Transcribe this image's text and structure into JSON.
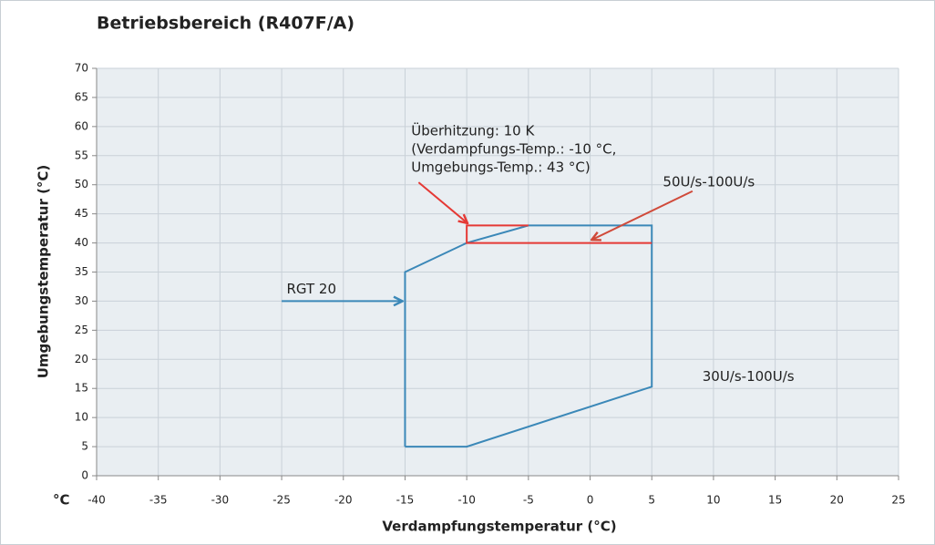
{
  "chart_data": {
    "type": "line",
    "title": "Betriebsbereich (R407F/A)",
    "x_label": "Verdampfungstemperatur (°C)",
    "y_label": "Umgebungstemperatur (°C)",
    "x_unit_label": "°C",
    "xlim": [
      -40,
      25
    ],
    "ylim": [
      0,
      70
    ],
    "xticks": [
      -40,
      -35,
      -30,
      -25,
      -20,
      -15,
      -10,
      -5,
      0,
      5,
      10,
      15,
      20,
      25
    ],
    "yticks": [
      0,
      5,
      10,
      15,
      20,
      25,
      30,
      35,
      40,
      45,
      50,
      55,
      60,
      65,
      70
    ],
    "grid": true,
    "series": [
      {
        "color": "#3b88b8",
        "x": [
          -15,
          -10,
          5,
          5,
          -5,
          -10,
          -15,
          -15
        ],
        "values": [
          5,
          5,
          15.3,
          43,
          43,
          40,
          35,
          5
        ]
      },
      {
        "color": "#e53935",
        "x": [
          5,
          -10,
          -10,
          -5
        ],
        "values": [
          40,
          40,
          43,
          43
        ]
      }
    ],
    "annotations": [
      {
        "lines": [
          "Überhitzung: 10 K",
          "(Verdampfungs-Temp.: -10 °C,",
          "Umgebungs-Temp.: 43 °C)"
        ],
        "color": "#e53935",
        "x": -14.5,
        "y": 59.2,
        "arrow": {
          "x1": -13.9,
          "y1": 50.4,
          "x2": -10,
          "y2": 43.5
        },
        "arrow_color": "#e53935"
      },
      {
        "lines": [
          "50U/s-100U/s"
        ],
        "color": "#222222",
        "x": 5.9,
        "y": 50.4,
        "arrow": {
          "x1": 8.3,
          "y1": 48.9,
          "x2": 0.2,
          "y2": 40.6
        },
        "arrow_color": "#d04a3a"
      },
      {
        "lines": [
          "RGT 20"
        ],
        "color": "#3b88b8",
        "x": -24.6,
        "y": 32,
        "arrow": {
          "x1": -25,
          "y1": 30,
          "x2": -15.3,
          "y2": 30
        },
        "arrow_color": "#3b88b8"
      },
      {
        "lines": [
          "30U/s-100U/s"
        ],
        "color": "#222222",
        "x": 9.1,
        "y": 17
      }
    ]
  }
}
